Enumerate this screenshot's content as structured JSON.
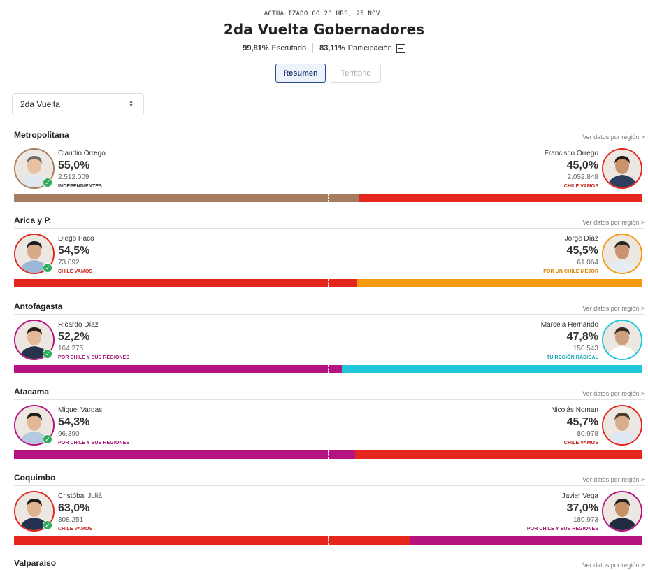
{
  "header": {
    "updated": "ACTUALIZADO 00:28 HRS, 25 NOV.",
    "title": "2da Vuelta Gobernadores",
    "escrutado_value": "99,81%",
    "escrutado_label": "Escrutado",
    "participacion_value": "83,11%",
    "participacion_label": "Participación"
  },
  "tabs": [
    {
      "label": "Resumen",
      "active": true
    },
    {
      "label": "Territorio",
      "active": false
    }
  ],
  "select": {
    "value": "2da Vuelta"
  },
  "link_label": "Ver datos por región >",
  "regions": [
    {
      "name": "Metropolitana",
      "left": {
        "name": "Claudio Orrego",
        "pct": "55,0%",
        "share": 55.0,
        "votes": "2.512.009",
        "party": "INDEPENDIENTES",
        "color": "#a67d5f",
        "party_color": "#333333",
        "winner": true
      },
      "right": {
        "name": "Francisco Orrego",
        "pct": "45,0%",
        "share": 45.0,
        "votes": "2.052.848",
        "party": "CHILE VAMOS",
        "color": "#e5261c",
        "party_color": "#c0201a",
        "winner": false
      }
    },
    {
      "name": "Arica y P.",
      "left": {
        "name": "Diego Paco",
        "pct": "54,5%",
        "share": 54.5,
        "votes": "73.092",
        "party": "CHILE VAMOS",
        "color": "#e5261c",
        "party_color": "#c0201a",
        "winner": true
      },
      "right": {
        "name": "Jorge Díaz",
        "pct": "45,5%",
        "share": 45.5,
        "votes": "61.064",
        "party": "POR UN CHILE MEJOR",
        "color": "#f5990f",
        "party_color": "#d98400",
        "winner": false
      }
    },
    {
      "name": "Antofagasta",
      "left": {
        "name": "Ricardo Díaz",
        "pct": "52,2%",
        "share": 52.2,
        "votes": "164.275",
        "party": "POR CHILE Y SUS REGIONES",
        "color": "#b5137f",
        "party_color": "#a0106f",
        "winner": true
      },
      "right": {
        "name": "Marcela Hernando",
        "pct": "47,8%",
        "share": 47.8,
        "votes": "150.543",
        "party": "TU REGIÓN RADICAL",
        "color": "#1ec8d9",
        "party_color": "#12a7b6",
        "winner": false
      }
    },
    {
      "name": "Atacama",
      "left": {
        "name": "Miguel Vargas",
        "pct": "54,3%",
        "share": 54.3,
        "votes": "96.390",
        "party": "POR CHILE Y SUS REGIONES",
        "color": "#b5137f",
        "party_color": "#a0106f",
        "winner": true
      },
      "right": {
        "name": "Nicolás Noman",
        "pct": "45,7%",
        "share": 45.7,
        "votes": "80.978",
        "party": "CHILE VAMOS",
        "color": "#e5261c",
        "party_color": "#c0201a",
        "winner": false
      }
    },
    {
      "name": "Coquimbo",
      "left": {
        "name": "Cristóbal Juliá",
        "pct": "63,0%",
        "share": 63.0,
        "votes": "308.251",
        "party": "CHILE VAMOS",
        "color": "#e5261c",
        "party_color": "#c0201a",
        "winner": true
      },
      "right": {
        "name": "Javier Vega",
        "pct": "37,0%",
        "share": 37.0,
        "votes": "180.973",
        "party": "POR CHILE Y SUS REGIONES",
        "color": "#b5137f",
        "party_color": "#a0106f",
        "winner": false
      }
    },
    {
      "name": "Valparaíso"
    }
  ]
}
